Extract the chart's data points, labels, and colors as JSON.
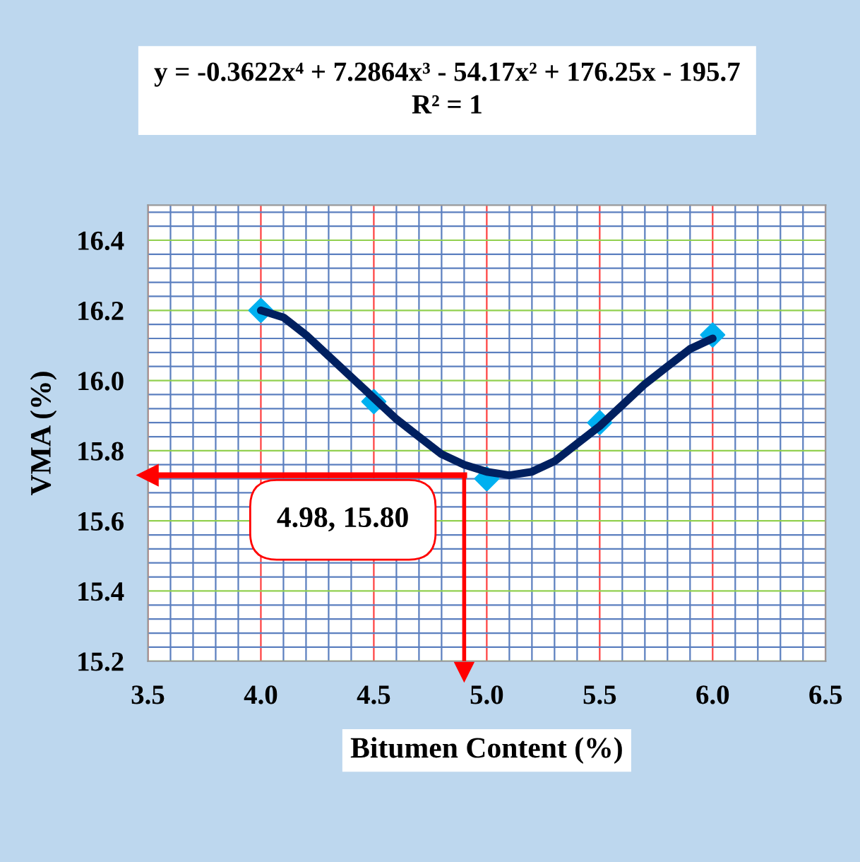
{
  "chart_data": {
    "type": "scatter",
    "xlabel": "Bitumen Content (%)",
    "ylabel": "VMA (%)",
    "annotations": [
      "y = -0.3622x⁴ + 7.2864x³ - 54.17x² + 176.25x - 195.7\nR² = 1",
      "4.98, 15.80"
    ],
    "series": [
      {
        "color": "#00b0f0",
        "marker": "diamond",
        "x": [
          4.0,
          4.5,
          5.0,
          5.5,
          6.0
        ],
        "values": [
          16.2,
          15.94,
          15.72,
          15.88,
          16.13
        ]
      },
      {
        "type": "line",
        "color": "#002060",
        "marker": "none",
        "x": [
          4.0,
          4.1,
          4.2,
          4.3,
          4.4,
          4.5,
          4.6,
          4.7,
          4.8,
          4.9,
          5.0,
          5.1,
          5.2,
          5.3,
          5.4,
          5.5,
          5.6,
          5.7,
          5.8,
          5.9,
          6.0
        ],
        "values": [
          16.2,
          16.18,
          16.13,
          16.07,
          16.01,
          15.95,
          15.89,
          15.84,
          15.79,
          15.76,
          15.74,
          15.73,
          15.74,
          15.77,
          15.82,
          15.87,
          15.93,
          15.99,
          16.04,
          16.09,
          16.12
        ]
      }
    ],
    "ref_lines": [
      {
        "axis": "x",
        "value": 4.9,
        "color": "#ff0000"
      },
      {
        "axis": "y",
        "value": 15.73,
        "color": "#ff0000"
      }
    ],
    "xlim": [
      3.5,
      6.5
    ],
    "xticks": [
      {
        "value": 3.5,
        "label": "3.5"
      },
      {
        "value": 3.6,
        "label": null
      },
      {
        "value": 3.7,
        "label": null
      },
      {
        "value": 3.8,
        "label": null
      },
      {
        "value": 3.9,
        "label": null
      },
      {
        "value": 4.0,
        "label": "4.0"
      },
      {
        "value": 4.1,
        "label": null
      },
      {
        "value": 4.2,
        "label": null
      },
      {
        "value": 4.3,
        "label": null
      },
      {
        "value": 4.4,
        "label": null
      },
      {
        "value": 4.5,
        "label": "4.5"
      },
      {
        "value": 4.6,
        "label": null
      },
      {
        "value": 4.7,
        "label": null
      },
      {
        "value": 4.8,
        "label": null
      },
      {
        "value": 4.9,
        "label": null
      },
      {
        "value": 5.0,
        "label": "5.0"
      },
      {
        "value": 5.1,
        "label": null
      },
      {
        "value": 5.2,
        "label": null
      },
      {
        "value": 5.3,
        "label": null
      },
      {
        "value": 5.4,
        "label": null
      },
      {
        "value": 5.5,
        "label": "5.5"
      },
      {
        "value": 5.6,
        "label": null
      },
      {
        "value": 5.7,
        "label": null
      },
      {
        "value": 5.8,
        "label": null
      },
      {
        "value": 5.9,
        "label": null
      },
      {
        "value": 6.0,
        "label": "6.0"
      },
      {
        "value": 6.1,
        "label": null
      },
      {
        "value": 6.2,
        "label": null
      },
      {
        "value": 6.3,
        "label": null
      },
      {
        "value": 6.4,
        "label": null
      },
      {
        "value": 6.5,
        "label": "6.5"
      }
    ],
    "ylim": [
      15.2,
      16.5
    ],
    "yticks": [
      {
        "value": 15.2,
        "label": "15.2"
      },
      {
        "value": 15.24,
        "label": null
      },
      {
        "value": 15.28,
        "label": null
      },
      {
        "value": 15.32,
        "label": null
      },
      {
        "value": 15.36,
        "label": null
      },
      {
        "value": 15.4,
        "label": "15.4"
      },
      {
        "value": 15.44,
        "label": null
      },
      {
        "value": 15.48,
        "label": null
      },
      {
        "value": 15.52,
        "label": null
      },
      {
        "value": 15.56,
        "label": null
      },
      {
        "value": 15.6,
        "label": "15.6"
      },
      {
        "value": 15.64,
        "label": null
      },
      {
        "value": 15.68,
        "label": null
      },
      {
        "value": 15.72,
        "label": null
      },
      {
        "value": 15.76,
        "label": null
      },
      {
        "value": 15.8,
        "label": "15.8"
      },
      {
        "value": 15.84,
        "label": null
      },
      {
        "value": 15.88,
        "label": null
      },
      {
        "value": 15.92,
        "label": null
      },
      {
        "value": 15.96,
        "label": null
      },
      {
        "value": 16.0,
        "label": "16.0"
      },
      {
        "value": 16.04,
        "label": null
      },
      {
        "value": 16.08,
        "label": null
      },
      {
        "value": 16.12,
        "label": null
      },
      {
        "value": 16.16,
        "label": null
      },
      {
        "value": 16.2,
        "label": "16.2"
      },
      {
        "value": 16.24,
        "label": null
      },
      {
        "value": 16.28,
        "label": null
      },
      {
        "value": 16.32,
        "label": null
      },
      {
        "value": 16.36,
        "label": null
      },
      {
        "value": 16.4,
        "label": "16.4"
      },
      {
        "value": 16.44,
        "label": null
      },
      {
        "value": 16.48,
        "label": null
      }
    ],
    "grid": true
  }
}
